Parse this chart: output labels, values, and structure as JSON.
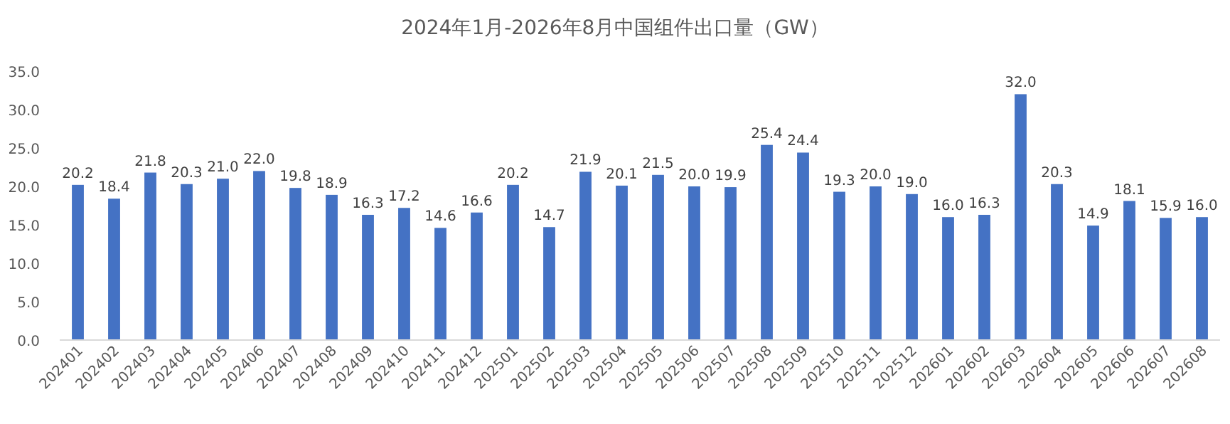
{
  "chart_data": {
    "type": "bar",
    "title": "2024年1月-2026年8月中国组件出口量（GW）",
    "categories": [
      "202401",
      "202402",
      "202403",
      "202404",
      "202405",
      "202406",
      "202407",
      "202408",
      "202409",
      "202410",
      "202411",
      "202412",
      "202501",
      "202502",
      "202503",
      "202504",
      "202505",
      "202506",
      "202507",
      "202508",
      "202509",
      "202510",
      "202511",
      "202512",
      "202601",
      "202602",
      "202603",
      "202604",
      "202605",
      "202606",
      "202607",
      "202608"
    ],
    "values": [
      20.2,
      18.4,
      21.8,
      20.3,
      21.0,
      22.0,
      19.8,
      18.9,
      16.3,
      17.2,
      14.6,
      16.6,
      20.2,
      14.7,
      21.9,
      20.1,
      21.5,
      20.0,
      19.9,
      25.4,
      24.4,
      19.3,
      20.0,
      19.0,
      16.0,
      16.3,
      32.0,
      20.3,
      14.9,
      18.1,
      15.9,
      16.0
    ],
    "value_labels": [
      "20.2",
      "18.4",
      "21.8",
      "20.3",
      "21.0",
      "22.0",
      "19.8",
      "18.9",
      "16.3",
      "17.2",
      "14.6",
      "16.6",
      "20.2",
      "14.7",
      "21.9",
      "20.1",
      "21.5",
      "20.0",
      "19.9",
      "25.4",
      "24.4",
      "19.3",
      "20.0",
      "19.0",
      "16.0",
      "16.3",
      "32.0",
      "20.3",
      "14.9",
      "18.1",
      "15.9",
      "16.0"
    ],
    "color": "#4472c4",
    "ylim": [
      0,
      35
    ],
    "yticks": [
      {
        "value": 0,
        "label": "0.0"
      },
      {
        "value": 5,
        "label": "5.0"
      },
      {
        "value": 10,
        "label": "10.0"
      },
      {
        "value": 15,
        "label": "15.0"
      },
      {
        "value": 20,
        "label": "20.0"
      },
      {
        "value": 25,
        "label": "25.0"
      },
      {
        "value": 30,
        "label": "30.0"
      },
      {
        "value": 35,
        "label": "35.0"
      }
    ],
    "grid": false
  }
}
